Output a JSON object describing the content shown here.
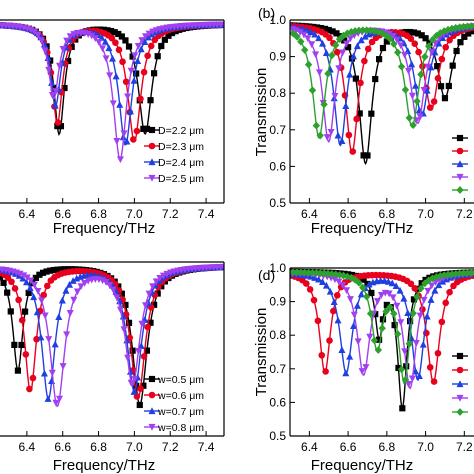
{
  "chart_data": [
    {
      "id": "a",
      "type": "line",
      "panel_label": "",
      "xlabel": "Frequency/THz",
      "ylabel": "",
      "xlim": [
        6.25,
        7.5
      ],
      "ylim": [
        0.5,
        1.0
      ],
      "x_ticks": [
        "6.4",
        "6.6",
        "6.8",
        "7.0",
        "7.2",
        "7.4"
      ],
      "y_ticks": [],
      "legend_position": "bottom-right",
      "series": [
        {
          "name": "D=2.2 μm",
          "color": "#000000",
          "marker": "square",
          "d1": {
            "f": 6.58,
            "depth": 0.3,
            "w": 0.07
          },
          "d2": {
            "f": 7.06,
            "depth": 0.3,
            "w": 0.09
          }
        },
        {
          "name": "D=2.3 μm",
          "color": "#e8001c",
          "marker": "circle",
          "d1": {
            "f": 6.57,
            "depth": 0.27,
            "w": 0.07
          },
          "d2": {
            "f": 7.0,
            "depth": 0.32,
            "w": 0.09
          }
        },
        {
          "name": "D=2.4 μm",
          "color": "#1f3fe0",
          "marker": "triangle-up",
          "d1": {
            "f": 6.56,
            "depth": 0.22,
            "w": 0.07
          },
          "d2": {
            "f": 6.95,
            "depth": 0.33,
            "w": 0.09
          }
        },
        {
          "name": "D=2.5 μm",
          "color": "#a040f0",
          "marker": "triangle-down",
          "d1": {
            "f": 6.55,
            "depth": 0.2,
            "w": 0.07
          },
          "d2": {
            "f": 6.92,
            "depth": 0.37,
            "w": 0.09
          }
        }
      ]
    },
    {
      "id": "b",
      "type": "line",
      "panel_label": "(b)",
      "xlabel": "Frequency/THz",
      "ylabel": "Transmission",
      "xlim": [
        6.3,
        7.25
      ],
      "ylim": [
        0.5,
        1.0
      ],
      "x_ticks": [
        "6.4",
        "6.6",
        "6.8",
        "7.0",
        "7.2"
      ],
      "y_ticks": [
        "0.5",
        "0.6",
        "0.7",
        "0.8",
        "0.9",
        "1.0"
      ],
      "legend_position": "right",
      "series": [
        {
          "name": "",
          "color": "#000000",
          "marker": "square",
          "d1": {
            "f": 6.69,
            "depth": 0.38,
            "w": 0.08
          },
          "d2": {
            "f": 7.1,
            "depth": 0.2,
            "w": 0.09
          }
        },
        {
          "name": "",
          "color": "#e8001c",
          "marker": "circle",
          "d1": {
            "f": 6.62,
            "depth": 0.35,
            "w": 0.08
          },
          "d2": {
            "f": 7.03,
            "depth": 0.23,
            "w": 0.09
          }
        },
        {
          "name": "",
          "color": "#1f3fe0",
          "marker": "triangle-up",
          "d1": {
            "f": 6.56,
            "depth": 0.33,
            "w": 0.08
          },
          "d2": {
            "f": 6.98,
            "depth": 0.25,
            "w": 0.09
          }
        },
        {
          "name": "",
          "color": "#a040f0",
          "marker": "triangle-down",
          "d1": {
            "f": 6.5,
            "depth": 0.32,
            "w": 0.08
          },
          "d2": {
            "f": 6.96,
            "depth": 0.27,
            "w": 0.09
          }
        },
        {
          "name": "",
          "color": "#2ea02e",
          "marker": "diamond",
          "d1": {
            "f": 6.45,
            "depth": 0.31,
            "w": 0.08
          },
          "d2": {
            "f": 6.93,
            "depth": 0.28,
            "w": 0.09
          }
        }
      ]
    },
    {
      "id": "c",
      "type": "line",
      "panel_label": "",
      "xlabel": "Frequency/THz",
      "ylabel": "",
      "xlim": [
        6.25,
        7.5
      ],
      "ylim": [
        0.5,
        1.0
      ],
      "x_ticks": [
        "6.4",
        "6.6",
        "6.8",
        "7.0",
        "7.2",
        "7.4"
      ],
      "y_ticks": [],
      "legend_position": "bottom-right",
      "series": [
        {
          "name": "w=0.5 μm",
          "color": "#000000",
          "marker": "square",
          "d1": {
            "f": 6.35,
            "depth": 0.3,
            "w": 0.07
          },
          "d2": {
            "f": 7.03,
            "depth": 0.4,
            "w": 0.1
          }
        },
        {
          "name": "w=0.6 μm",
          "color": "#e8001c",
          "marker": "circle",
          "d1": {
            "f": 6.42,
            "depth": 0.36,
            "w": 0.08
          },
          "d2": {
            "f": 7.02,
            "depth": 0.38,
            "w": 0.1
          }
        },
        {
          "name": "w=0.7 μm",
          "color": "#1f3fe0",
          "marker": "triangle-up",
          "d1": {
            "f": 6.52,
            "depth": 0.38,
            "w": 0.09
          },
          "d2": {
            "f": 7.0,
            "depth": 0.36,
            "w": 0.1
          }
        },
        {
          "name": "w=0.8 μm",
          "color": "#a040f0",
          "marker": "triangle-down",
          "d1": {
            "f": 6.57,
            "depth": 0.4,
            "w": 0.1
          },
          "d2": {
            "f": 6.99,
            "depth": 0.34,
            "w": 0.1
          }
        }
      ]
    },
    {
      "id": "d",
      "type": "line",
      "panel_label": "(d)",
      "xlabel": "Frequency/THz",
      "ylabel": "Transmission",
      "xlim": [
        6.3,
        7.25
      ],
      "ylim": [
        0.5,
        1.0
      ],
      "x_ticks": [
        "6.4",
        "6.6",
        "6.8",
        "7.0",
        "7.2"
      ],
      "y_ticks": [
        "0.5",
        "0.6",
        "0.7",
        "0.8",
        "0.9",
        "1.0"
      ],
      "legend_position": "right",
      "series": [
        {
          "name": "",
          "color": "#000000",
          "marker": "square",
          "d1": {
            "f": 6.76,
            "depth": 0.18,
            "w": 0.05
          },
          "d2": {
            "f": 6.88,
            "depth": 0.4,
            "w": 0.06
          }
        },
        {
          "name": "",
          "color": "#e8001c",
          "marker": "circle",
          "d1": {
            "f": 6.48,
            "depth": 0.3,
            "w": 0.07
          },
          "d2": {
            "f": 7.04,
            "depth": 0.33,
            "w": 0.08
          }
        },
        {
          "name": "",
          "color": "#1f3fe0",
          "marker": "triangle-up",
          "d1": {
            "f": 6.59,
            "depth": 0.3,
            "w": 0.08
          },
          "d2": {
            "f": 6.96,
            "depth": 0.32,
            "w": 0.08
          }
        },
        {
          "name": "",
          "color": "#a040f0",
          "marker": "triangle-down",
          "d1": {
            "f": 6.68,
            "depth": 0.3,
            "w": 0.08
          },
          "d2": {
            "f": 6.92,
            "depth": 0.34,
            "w": 0.08
          }
        },
        {
          "name": "",
          "color": "#2ea02e",
          "marker": "diamond",
          "d1": {
            "f": 6.75,
            "depth": 0.22,
            "w": 0.07
          },
          "d2": {
            "f": 6.89,
            "depth": 0.32,
            "w": 0.07
          }
        }
      ]
    }
  ]
}
